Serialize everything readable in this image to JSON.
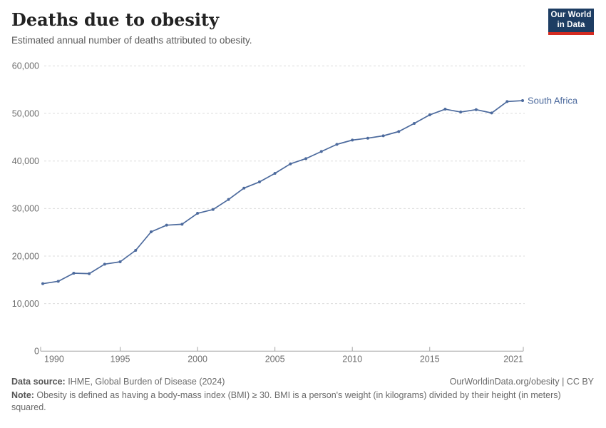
{
  "header": {
    "title": "Deaths due to obesity",
    "subtitle": "Estimated annual number of deaths attributed to obesity.",
    "logo": {
      "line1": "Our World",
      "line2": "in Data"
    }
  },
  "chart_data": {
    "type": "line",
    "title": "Deaths due to obesity",
    "xlabel": "",
    "ylabel": "",
    "x": [
      1990,
      1991,
      1992,
      1993,
      1994,
      1995,
      1996,
      1997,
      1998,
      1999,
      2000,
      2001,
      2002,
      2003,
      2004,
      2005,
      2006,
      2007,
      2008,
      2009,
      2010,
      2011,
      2012,
      2013,
      2014,
      2015,
      2016,
      2017,
      2018,
      2019,
      2020,
      2021
    ],
    "series": [
      {
        "name": "South Africa",
        "color": "#4c6a9d",
        "values": [
          14200,
          14700,
          16400,
          16300,
          18300,
          18800,
          21200,
          25100,
          26500,
          26700,
          29000,
          29800,
          31900,
          34300,
          35600,
          37400,
          39400,
          40500,
          42000,
          43500,
          44400,
          44800,
          45300,
          46200,
          47900,
          49700,
          50900,
          50300,
          50800,
          50100,
          52500,
          52700
        ]
      }
    ],
    "x_ticks": [
      1990,
      1995,
      2000,
      2005,
      2010,
      2015,
      2021
    ],
    "y_ticks": [
      0,
      10000,
      20000,
      30000,
      40000,
      50000,
      60000
    ],
    "xlim": [
      1990,
      2021
    ],
    "ylim": [
      0,
      60000
    ],
    "grid": "horizontal-dashed",
    "legend_position": "end-of-line",
    "end_label": "South Africa"
  },
  "footer": {
    "source_label": "Data source:",
    "source_value": " IHME, Global Burden of Disease (2024)",
    "link": "OurWorldinData.org/obesity | CC BY",
    "note_label": "Note:",
    "note_value": " Obesity is defined as having a body-mass index (BMI) ≥ 30. BMI is a person's weight (in kilograms) divided by their height (in meters) squared."
  },
  "colors": {
    "line": "#4c6a9d",
    "grid": "#dcdcdc",
    "axis": "#a3a3a3",
    "tick_text": "#6e6e6e",
    "logo_bg": "#1d3d63",
    "logo_accent": "#d42b21"
  }
}
